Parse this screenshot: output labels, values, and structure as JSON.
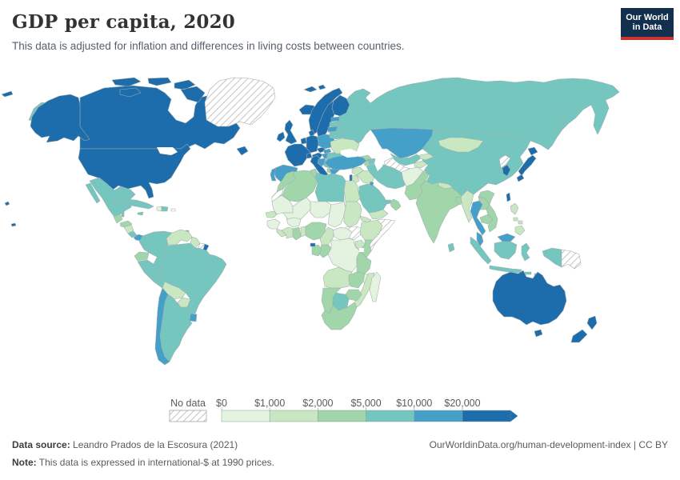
{
  "header": {
    "title": "GDP per capita, 2020",
    "subtitle": "This data is adjusted for inflation and differences in living costs between countries."
  },
  "logo": {
    "line1": "Our World",
    "line2": "in Data",
    "bg_color": "#12304e",
    "accent_color": "#c9342c"
  },
  "legend": {
    "no_data_label": "No data",
    "tick_labels": [
      "$0",
      "$1,000",
      "$2,000",
      "$5,000",
      "$10,000",
      "$20,000"
    ]
  },
  "footer": {
    "source_label": "Data source:",
    "source_text": " Leandro Prados de la Escosura (2021)",
    "note_label": "Note:",
    "note_text": " This data is expressed in international-$ at 1990 prices.",
    "link": "OurWorldinData.org/human-development-index | CC BY"
  },
  "chart_data": {
    "type": "choropleth-map",
    "title": "GDP per capita, 2020",
    "unit": "international-$ at 1990 prices",
    "legend_position": "bottom",
    "border_color": "#a3adad",
    "bins": {
      "b1": {
        "range": "$0-$1,000",
        "color": "#e4f3df"
      },
      "b2": {
        "range": "$1,000-$2,000",
        "color": "#c9e7c1"
      },
      "b3": {
        "range": "$2,000-$5,000",
        "color": "#a0d6a9"
      },
      "b4": {
        "range": "$5,000-$10,000",
        "color": "#74c6be"
      },
      "b5": {
        "range": "$10,000-$20,000",
        "color": "#44a0c9"
      },
      "b6": {
        "range": "$20,000+",
        "color": "#1d6cab"
      },
      "nd": {
        "range": "No data",
        "color": "hatch"
      }
    },
    "countries": {
      "canada": "b6",
      "usa": "b6",
      "alaska": "b6",
      "hawaii": "b6",
      "st-lawrence-island": "b6",
      "greenland": "nd",
      "iceland": "b6",
      "svalbard": "b6",
      "mexico": "b4",
      "cuba": "b4",
      "jamaica": "b4",
      "haiti": "b1",
      "dominican-republic": "b4",
      "puerto-rico": "nd",
      "belize": "b4",
      "guatemala": "b3",
      "honduras": "b3",
      "nicaragua": "b2",
      "costa-rica": "b4",
      "panama": "b5",
      "trinidad": "b4",
      "colombia": "b4",
      "venezuela": "b2",
      "guyana": "b2",
      "suriname": "nd",
      "french-guiana": "b6",
      "ecuador": "b3",
      "peru": "b4",
      "brazil": "b4",
      "bolivia": "b2",
      "paraguay": "b2",
      "chile": "b5",
      "argentina": "b4",
      "uruguay": "b5",
      "norway": "b6",
      "sweden": "b6",
      "finland": "b6",
      "denmark": "b6",
      "united-kingdom": "b6",
      "ireland": "b6",
      "benelux": "b6",
      "germany": "b6",
      "france": "b6",
      "switzerland": "b6",
      "austria": "b6",
      "czechia": "b6",
      "slovakia": "b5",
      "poland": "b5",
      "hungary": "b5",
      "croatia-slovenia": "b5",
      "serbia-bosnia": "b4",
      "albania": "b3",
      "greece": "b5",
      "crete": "b5",
      "bulgaria-macedonia": "b4",
      "romania": "b4",
      "moldova": "b2",
      "ukraine": "b2",
      "belarus": "b4",
      "estonia": "b5",
      "latvia": "b4",
      "lithuania": "b5",
      "spain": "b5",
      "portugal": "b5",
      "italy": "b6",
      "sicily": "b6",
      "sardinia": "b6",
      "russia": "b4",
      "chukotka": "b4",
      "sakhalin": "b4",
      "kazakhstan": "b5",
      "uzbekistan": "b4",
      "turkmenistan": "nd",
      "kyrgyzstan": "b2",
      "tajikistan": "b2",
      "georgia": "b3",
      "azerbaijan": "b4",
      "armenia": "b3",
      "turkey": "b5",
      "syria": "b2",
      "iraq": "b2",
      "israel": "b6",
      "jordan": "b2",
      "saudi-arabia": "b4",
      "kuwait": "b5",
      "uae": "b4",
      "oman": "b3",
      "yemen": "b2",
      "iran": "b4",
      "afghanistan": "b1",
      "pakistan": "b3",
      "india": "b3",
      "nepal": "b2",
      "bangladesh": "b3",
      "sri-lanka": "b4",
      "china": "b4",
      "mongolia": "b2",
      "north-korea": "nd",
      "south-korea": "b6",
      "japan-hokkaido": "b6",
      "japan-honshu": "b6",
      "japan-kyushu": "b6",
      "taiwan": "b6",
      "myanmar": "b2",
      "thailand": "b5",
      "laos": "b3",
      "cambodia": "b3",
      "vietnam": "b3",
      "malaysia-peninsula": "b5",
      "malaysia-borneo": "b5",
      "sumatra": "b4",
      "java": "b4",
      "kalimantan": "b4",
      "sulawesi": "b4",
      "lesser-sunda": "b4",
      "west-papua": "b4",
      "papua-new-guinea": "nd",
      "luzon": "b2",
      "visayas": "b2",
      "mindanao": "b2",
      "morocco": "b3",
      "western-sahara": "nd",
      "algeria": "b3",
      "tunisia": "b3",
      "libya": "b4",
      "egypt": "b2",
      "mauritania": "b1",
      "mali": "b1",
      "niger": "b1",
      "chad": "b1",
      "sudan": "b2",
      "south-sudan": "nd",
      "eritrea": "b2",
      "ethiopia": "b2",
      "somalia": "nd",
      "senegal": "b2",
      "guinea": "b1",
      "liberia": "b2",
      "cote-divoire": "b2",
      "ghana": "b3",
      "togo-benin": "b2",
      "burkina-faso": "b1",
      "nigeria": "b3",
      "cameroon": "b2",
      "central-african-republic": "b1",
      "equatorial-guinea": "b6",
      "gabon": "b3",
      "congo": "b3",
      "drc": "b1",
      "uganda": "b2",
      "kenya": "b3",
      "tanzania": "b3",
      "angola": "b2",
      "zambia": "b3",
      "malawi": "b1",
      "mozambique": "b2",
      "zimbabwe": "b3",
      "botswana": "b4",
      "namibia": "b3",
      "south-africa": "b3",
      "madagascar": "b1",
      "australia": "b6",
      "tasmania": "b6",
      "new-zealand-north": "b6",
      "new-zealand-south": "b6"
    }
  }
}
